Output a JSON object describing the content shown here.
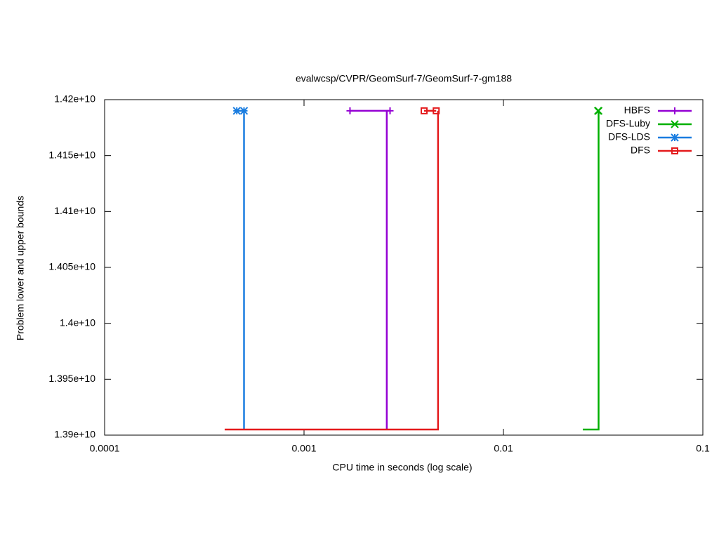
{
  "chart_data": {
    "type": "step-bounds",
    "title": "evalwcsp/CVPR/GeomSurf-7/GeomSurf-7-gm188",
    "x_label": "CPU time in seconds (log scale)",
    "y_label": "Problem lower and upper bounds",
    "x_log": true,
    "xlim": [
      0.0001,
      0.1
    ],
    "xticks": [
      0.0001,
      0.001,
      0.01,
      0.1
    ],
    "ylim": [
      13900000000,
      14200000000
    ],
    "yticks": [
      {
        "value": 13900000000,
        "label": "1.39e+10"
      },
      {
        "value": 13950000000,
        "label": "1.395e+10"
      },
      {
        "value": 14000000000,
        "label": "1.4e+10"
      },
      {
        "value": 14050000000,
        "label": "1.405e+10"
      },
      {
        "value": 14100000000,
        "label": "1.41e+10"
      },
      {
        "value": 14150000000,
        "label": "1.415e+10"
      },
      {
        "value": 14200000000,
        "label": "1.42e+10"
      }
    ],
    "legend": "top-right",
    "series": [
      {
        "name": "HBFS",
        "color": "#9400d3",
        "marker": "plus",
        "x": [
          0.0017,
          0.0027
        ],
        "values": [
          14190000000,
          14190000000
        ],
        "lower_x": [
          0.0026,
          0.0026
        ],
        "lower_values": [
          14190000000,
          13905000000
        ]
      },
      {
        "name": "DFS-Luby",
        "color": "#00b000",
        "marker": "cross",
        "x": [
          0.0298,
          0.03
        ],
        "values": [
          14190000000,
          14190000000
        ],
        "lower_x": [
          0.03,
          0.03,
          0.025
        ],
        "lower_values": [
          14190000000,
          13905000000,
          13905000000
        ]
      },
      {
        "name": "DFS-LDS",
        "color": "#1a7de0",
        "marker": "star",
        "x": [
          0.00046,
          0.0005
        ],
        "values": [
          14190000000,
          14190000000
        ],
        "lower_x": [
          0.0005,
          0.0005
        ],
        "lower_values": [
          14190000000,
          13905000000
        ]
      },
      {
        "name": "DFS",
        "color": "#e41a1c",
        "marker": "square",
        "x": [
          0.004,
          0.0046
        ],
        "values": [
          14190000000,
          14190000000
        ],
        "lower_x": [
          0.0047,
          0.0047,
          0.0004
        ],
        "lower_values": [
          14190000000,
          13905000000,
          13905000000
        ]
      }
    ]
  }
}
